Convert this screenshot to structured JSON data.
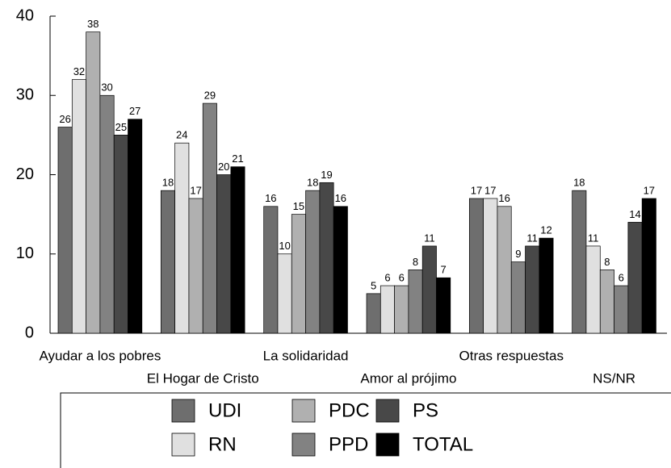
{
  "chart_data": {
    "type": "bar",
    "categories": [
      "Ayudar a los pobres",
      "El Hogar de Cristo",
      "La solidaridad",
      "Amor al prójimo",
      "Otras respuestas",
      "NS/NR"
    ],
    "series": [
      {
        "name": "UDI",
        "color": "#6e6e6e",
        "values": [
          26,
          18,
          16,
          5,
          17,
          18
        ]
      },
      {
        "name": "RN",
        "color": "#e0e0e0",
        "values": [
          32,
          24,
          10,
          6,
          17,
          11
        ]
      },
      {
        "name": "PDC",
        "color": "#b0b0b0",
        "values": [
          38,
          17,
          15,
          6,
          16,
          8
        ]
      },
      {
        "name": "PPD",
        "color": "#828282",
        "values": [
          30,
          29,
          18,
          8,
          9,
          6
        ]
      },
      {
        "name": "PS",
        "color": "#484848",
        "values": [
          25,
          20,
          19,
          11,
          11,
          14
        ]
      },
      {
        "name": "TOTAL",
        "color": "#000000",
        "values": [
          27,
          21,
          16,
          7,
          12,
          17
        ]
      }
    ],
    "ylim": [
      0,
      40
    ],
    "yticks": [
      0,
      10,
      20,
      30,
      40
    ],
    "grid": false,
    "legend": "bottom"
  }
}
